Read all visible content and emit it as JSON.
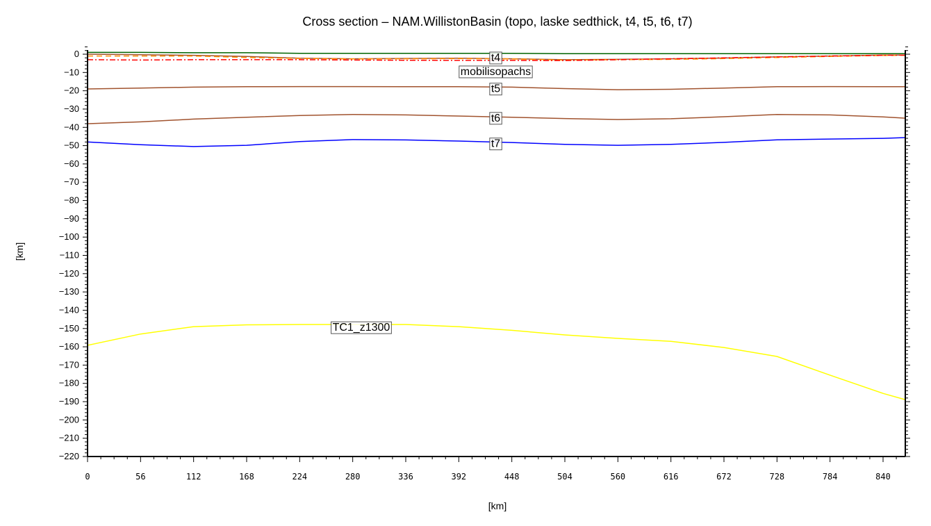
{
  "chart_data": {
    "type": "line",
    "title": "Cross section – NAM.WillistonBasin (topo, laske sedthick, t4, t5, t6, t7)",
    "xlabel": "[km]",
    "ylabel": "[km]",
    "xlim": [
      0,
      864
    ],
    "ylim": [
      -220,
      5
    ],
    "xticks": [
      0,
      56,
      112,
      168,
      224,
      280,
      336,
      392,
      448,
      504,
      560,
      616,
      672,
      728,
      784,
      840
    ],
    "yticks": [
      0,
      -10,
      -20,
      -30,
      -40,
      -50,
      -60,
      -70,
      -80,
      -90,
      -100,
      -110,
      -120,
      -130,
      -140,
      -150,
      -160,
      -170,
      -180,
      -190,
      -200,
      -210,
      -220
    ],
    "grid": false,
    "x": [
      0,
      56,
      112,
      168,
      224,
      280,
      336,
      392,
      448,
      504,
      560,
      616,
      672,
      728,
      784,
      840,
      864
    ],
    "series": [
      {
        "name": "topo",
        "color": "#006400",
        "dash": "",
        "values": [
          1,
          1,
          0.8,
          0.8,
          0.5,
          0.5,
          0.5,
          0.5,
          0.5,
          0.3,
          0.3,
          0.3,
          0.3,
          0.3,
          0.3,
          0.3,
          0.3
        ]
      },
      {
        "name": "t4",
        "color": "#a0522d",
        "dash": "",
        "values": [
          0,
          -0.3,
          -0.6,
          -1.2,
          -2.2,
          -2.5,
          -2.3,
          -2.2,
          -2.5,
          -3,
          -2.8,
          -2.5,
          -2.1,
          -1.5,
          -1,
          -0.5,
          -0.5
        ]
      },
      {
        "name": "laske sedthick",
        "color": "#ff8c00",
        "dash": "8,5",
        "values": [
          -1,
          -1,
          -1,
          -1.8,
          -2.3,
          -2.6,
          -2.5,
          -2.4,
          -2.6,
          -3.2,
          -3,
          -2.8,
          -2.4,
          -1.8,
          -1.2,
          -0.7,
          -0.6
        ]
      },
      {
        "name": "mobilisopachs",
        "color": "#ff0000",
        "dash": "8,3,2,3",
        "values": [
          -3,
          -3.2,
          -3,
          -3,
          -3,
          -3.2,
          -3.3,
          -3.4,
          -3.4,
          -3.5,
          -3,
          -2.5,
          -2,
          -1.5,
          -1,
          -0.6,
          -0.5
        ]
      },
      {
        "name": "t5",
        "color": "#a0522d",
        "dash": "",
        "values": [
          -19,
          -18.5,
          -18,
          -17.8,
          -17.7,
          -17.7,
          -17.8,
          -17.8,
          -18,
          -18.8,
          -19.4,
          -19.2,
          -18.5,
          -17.8,
          -17.7,
          -17.8,
          -17.8
        ]
      },
      {
        "name": "t6",
        "color": "#a0522d",
        "dash": "",
        "values": [
          -38,
          -37,
          -35.5,
          -34.5,
          -33.5,
          -33,
          -33.2,
          -33.8,
          -34.5,
          -35.2,
          -35.7,
          -35.3,
          -34.2,
          -33,
          -33.2,
          -34.3,
          -35
        ]
      },
      {
        "name": "t7",
        "color": "#0000ff",
        "dash": "",
        "values": [
          -48,
          -49.5,
          -50.5,
          -49.8,
          -47.8,
          -46.7,
          -46.9,
          -47.5,
          -48.3,
          -49.3,
          -49.8,
          -49.3,
          -48.2,
          -46.8,
          -46.4,
          -46,
          -45.6
        ]
      },
      {
        "name": "TC1_z1300",
        "color": "#ffff00",
        "dash": "",
        "values": [
          -159.2,
          -153,
          -149,
          -148,
          -147.8,
          -147.8,
          -147.8,
          -149,
          -151,
          -153.5,
          -155.4,
          -157,
          -160.4,
          -165.3,
          -175.5,
          -185.5,
          -189
        ]
      }
    ],
    "annotations": [
      {
        "text": "t4",
        "x": 431,
        "y": -1.5
      },
      {
        "text": "mobilisopachs",
        "x": 431,
        "y": -4.5
      },
      {
        "text": "t5",
        "x": 431,
        "y": -18.5
      },
      {
        "text": "t6",
        "x": 431,
        "y": -34.5
      },
      {
        "text": "t7",
        "x": 431,
        "y": -48.5
      },
      {
        "text": "TC1_z1300",
        "x": 289,
        "y": -149
      }
    ]
  }
}
